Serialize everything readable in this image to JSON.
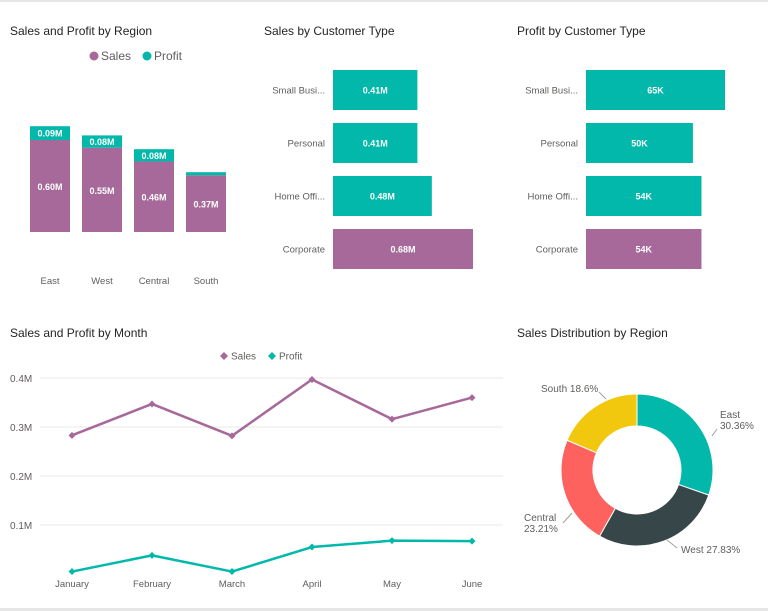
{
  "colors": {
    "sales": "#a66999",
    "profit": "#01b8aa",
    "axis": "#605e5c",
    "grid": "#e8e8e8",
    "east": "#01b8aa",
    "west": "#374649",
    "central": "#fd625e",
    "south": "#f2c80f"
  },
  "chart_data": [
    {
      "type": "bar",
      "stacked": true,
      "title": "Sales and Profit by Region",
      "legend": [
        {
          "name": "Sales",
          "marker": "circle"
        },
        {
          "name": "Profit",
          "marker": "circle"
        }
      ],
      "categories": [
        "East",
        "West",
        "Central",
        "South"
      ],
      "series": [
        {
          "name": "Sales",
          "values": [
            0.6,
            0.55,
            0.46,
            0.37
          ],
          "labels": [
            "0.60M",
            "0.55M",
            "0.46M",
            "0.37M"
          ]
        },
        {
          "name": "Profit",
          "values": [
            0.09,
            0.08,
            0.08,
            0.02
          ],
          "labels": [
            "0.09M",
            "0.08M",
            "0.08M",
            ""
          ]
        }
      ],
      "ylim": [
        0,
        0.7
      ]
    },
    {
      "type": "bar",
      "orientation": "horizontal",
      "title": "Sales by Customer Type",
      "categories": [
        "Small Busi...",
        "Personal",
        "Home Offi...",
        "Corporate"
      ],
      "values": [
        0.41,
        0.41,
        0.48,
        0.68
      ],
      "labels": [
        "0.41M",
        "0.41M",
        "0.48M",
        "0.68M"
      ],
      "highlight_index": 3,
      "xlim": [
        0,
        0.68
      ]
    },
    {
      "type": "bar",
      "orientation": "horizontal",
      "title": "Profit by Customer Type",
      "categories": [
        "Small Busi...",
        "Personal",
        "Home Offi...",
        "Corporate"
      ],
      "values": [
        65,
        50,
        54,
        54
      ],
      "labels": [
        "65K",
        "50K",
        "54K",
        "54K"
      ],
      "highlight_index": 3,
      "xlim": [
        0,
        70
      ]
    },
    {
      "type": "line",
      "title": "Sales and Profit by Month",
      "legend": [
        {
          "name": "Sales",
          "marker": "diamond"
        },
        {
          "name": "Profit",
          "marker": "diamond"
        }
      ],
      "x": [
        "January",
        "February",
        "March",
        "April",
        "May",
        "June"
      ],
      "series": [
        {
          "name": "Sales",
          "values": [
            0.283,
            0.347,
            0.282,
            0.397,
            0.316,
            0.36
          ]
        },
        {
          "name": "Profit",
          "values": [
            0.005,
            0.038,
            0.005,
            0.055,
            0.068,
            0.067
          ]
        }
      ],
      "yticks": [
        {
          "value": 0.1,
          "label": "0.1M"
        },
        {
          "value": 0.2,
          "label": "0.2M"
        },
        {
          "value": 0.3,
          "label": "0.3M"
        },
        {
          "value": 0.4,
          "label": "0.4M"
        }
      ],
      "ylim": [
        0,
        0.4
      ]
    },
    {
      "type": "pie",
      "donut": true,
      "title": "Sales Distribution by Region",
      "slices": [
        {
          "name": "East",
          "value": 30.36,
          "label": "30.36%"
        },
        {
          "name": "West",
          "value": 27.83,
          "label": "27.83%"
        },
        {
          "name": "Central",
          "value": 23.21,
          "label": "23.21%"
        },
        {
          "name": "South",
          "value": 18.6,
          "label": "18.6%"
        }
      ]
    }
  ]
}
